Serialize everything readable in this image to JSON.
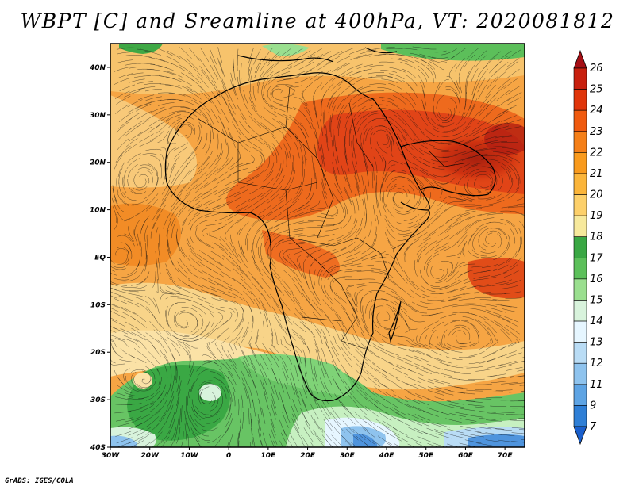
{
  "title": "WBPT [C] and Sreamline at 400hPa, VT: 2020081812",
  "credit": "GrADS: IGES/COLA",
  "map": {
    "variable": "Wet-bulb potential temperature (WBPT) with streamlines",
    "level": "400hPa",
    "valid_time": "2020081812",
    "lon_range": [
      -30,
      75
    ],
    "lat_range": [
      -40,
      45
    ],
    "x_ticks": [
      "30W",
      "20W",
      "10W",
      "0",
      "10E",
      "20E",
      "30E",
      "40E",
      "50E",
      "60E",
      "70E"
    ],
    "y_ticks": [
      "40N",
      "30N",
      "20N",
      "10N",
      "EQ",
      "10S",
      "20S",
      "30S",
      "40S"
    ]
  },
  "colorbar": {
    "labels": [
      "26",
      "25",
      "24",
      "23",
      "22",
      "21",
      "20",
      "19",
      "18",
      "17",
      "16",
      "15",
      "14",
      "13",
      "12",
      "11",
      "9",
      "7"
    ],
    "colors": [
      "#a50f15",
      "#c8200e",
      "#e0350a",
      "#f05a0e",
      "#f57f17",
      "#f99a1c",
      "#fbb53a",
      "#fdd06a",
      "#f7e99c",
      "#3aa844",
      "#5cc05a",
      "#9adf8f",
      "#d8f3dc",
      "#e6f6ff",
      "#b9dcf5",
      "#8ec3ee",
      "#5ea4e4",
      "#2f7fd6",
      "#1a5fcc"
    ]
  }
}
